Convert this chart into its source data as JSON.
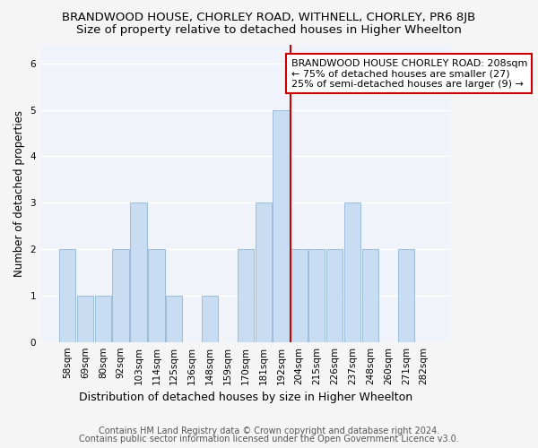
{
  "title1": "BRANDWOOD HOUSE, CHORLEY ROAD, WITHNELL, CHORLEY, PR6 8JB",
  "title2": "Size of property relative to detached houses in Higher Wheelton",
  "xlabel": "Distribution of detached houses by size in Higher Wheelton",
  "ylabel": "Number of detached properties",
  "categories": [
    "58sqm",
    "69sqm",
    "80sqm",
    "92sqm",
    "103sqm",
    "114sqm",
    "125sqm",
    "136sqm",
    "148sqm",
    "159sqm",
    "170sqm",
    "181sqm",
    "192sqm",
    "204sqm",
    "215sqm",
    "226sqm",
    "237sqm",
    "248sqm",
    "260sqm",
    "271sqm",
    "282sqm"
  ],
  "values": [
    2,
    1,
    1,
    2,
    3,
    2,
    1,
    0,
    1,
    0,
    2,
    3,
    5,
    2,
    2,
    2,
    3,
    2,
    0,
    2,
    0
  ],
  "bar_color": "#c8ddf2",
  "bar_edge_color": "#9bbcd8",
  "ref_line_color": "#cc0000",
  "annotation_title": "BRANDWOOD HOUSE CHORLEY ROAD: 208sqm",
  "annotation_line1": "← 75% of detached houses are smaller (27)",
  "annotation_line2": "25% of semi-detached houses are larger (9) →",
  "annotation_box_facecolor": "#ffffff",
  "annotation_box_edgecolor": "#cc0000",
  "ylim": [
    0,
    6.4
  ],
  "yticks": [
    0,
    1,
    2,
    3,
    4,
    5,
    6
  ],
  "footer1": "Contains HM Land Registry data © Crown copyright and database right 2024.",
  "footer2": "Contains public sector information licensed under the Open Government Licence v3.0.",
  "fig_facecolor": "#f5f5f5",
  "plot_facecolor": "#f0f4fa",
  "grid_color": "#ffffff",
  "title1_fontsize": 9.5,
  "title2_fontsize": 9.5,
  "xlabel_fontsize": 9,
  "ylabel_fontsize": 8.5,
  "tick_fontsize": 7.5,
  "annotation_fontsize": 8,
  "footer_fontsize": 7
}
